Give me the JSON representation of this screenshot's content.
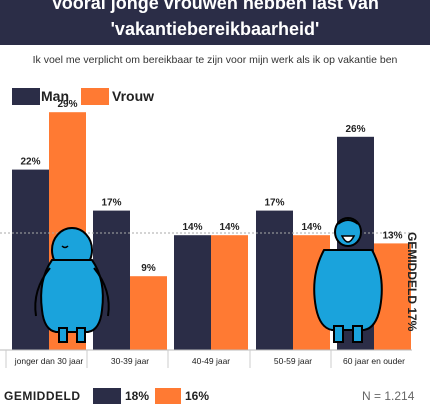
{
  "header": {
    "title_line1": "Vooral jonge vrouwen hebben last van",
    "title_line2": "'vakantiebereikbaarheid'"
  },
  "subtitle": "Ik voel me verplicht om bereikbaar te zijn voor mijn werk als ik op vakantie ben",
  "colors": {
    "man": "#2b2d47",
    "vrouw": "#ff7a33",
    "header_bg": "#2b2d47",
    "mascot": "#1aa3dc"
  },
  "legend": {
    "man": "Man",
    "vrouw": "Vrouw"
  },
  "average_label": "GEMIDDELD 17%",
  "footer": {
    "label": "GEMIDDELD",
    "man_value": "18%",
    "vrouw_value": "16%",
    "n": "N = 1.214"
  },
  "chart_data": {
    "type": "bar",
    "categories": [
      "jonger dan 30 jaar",
      "30-39 jaar",
      "40-49 jaar",
      "50-59 jaar",
      "60 jaar en ouder"
    ],
    "series": [
      {
        "name": "Man",
        "values": [
          22,
          17,
          14,
          17,
          26
        ],
        "labels": [
          "22%",
          "17%",
          "14%",
          "17%",
          "26%"
        ]
      },
      {
        "name": "Vrouw",
        "values": [
          29,
          9,
          14,
          14,
          13
        ],
        "labels": [
          "29%",
          "9%",
          "14%",
          "14%",
          "13%"
        ]
      }
    ],
    "average": 17,
    "ylim": [
      0,
      32
    ],
    "grid": false,
    "legend_position": "top-left"
  }
}
